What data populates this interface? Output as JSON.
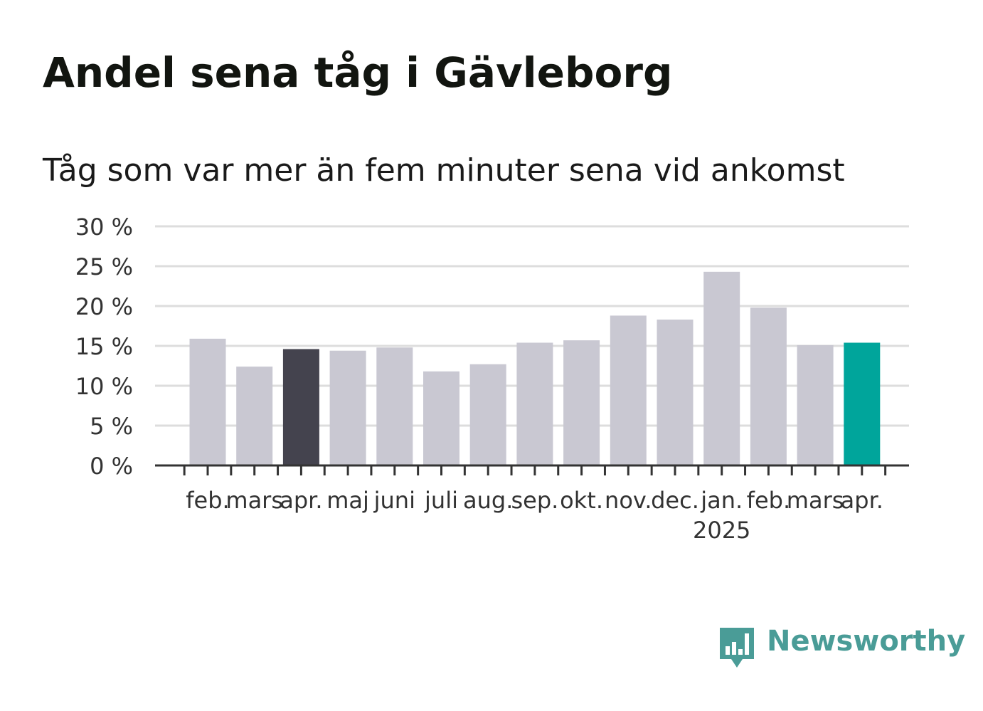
{
  "header": {
    "title": "Andel sena tåg i Gävleborg",
    "subtitle": "Tåg som var mer än fem minuter sena vid ankomst"
  },
  "brand": {
    "name": "Newsworthy",
    "icon": "bar-chart-speech-bubble-icon",
    "color": "#4a9c97"
  },
  "colors": {
    "bar_default": "#c9c8d2",
    "bar_previous_year": "#44434e",
    "bar_latest": "#00a59b",
    "grid": "#dddddd",
    "axis": "#333333"
  },
  "chart_data": {
    "type": "bar",
    "title": "Andel sena tåg i Gävleborg",
    "subtitle": "Tåg som var mer än fem minuter sena vid ankomst",
    "categories": [
      "feb.",
      "mars",
      "apr.",
      "maj",
      "juni",
      "juli",
      "aug.",
      "sep.",
      "okt.",
      "nov.",
      "dec.",
      "jan.",
      "feb.",
      "mars",
      "apr."
    ],
    "year_markers": [
      {
        "category_index": 11,
        "label": "2025"
      }
    ],
    "values": [
      15.9,
      12.4,
      14.6,
      14.4,
      14.8,
      11.8,
      12.7,
      15.4,
      15.7,
      18.8,
      18.3,
      24.3,
      19.8,
      15.1,
      15.4
    ],
    "highlight": {
      "2": "previous_year",
      "14": "latest"
    },
    "ylim": [
      0,
      30
    ],
    "yticks": [
      0,
      5,
      10,
      15,
      20,
      25,
      30
    ],
    "ytick_labels": [
      "0 %",
      "5 %",
      "10 %",
      "15 %",
      "20 %",
      "25 %",
      "30 %"
    ],
    "xlabel": "",
    "ylabel": "",
    "grid": true
  }
}
